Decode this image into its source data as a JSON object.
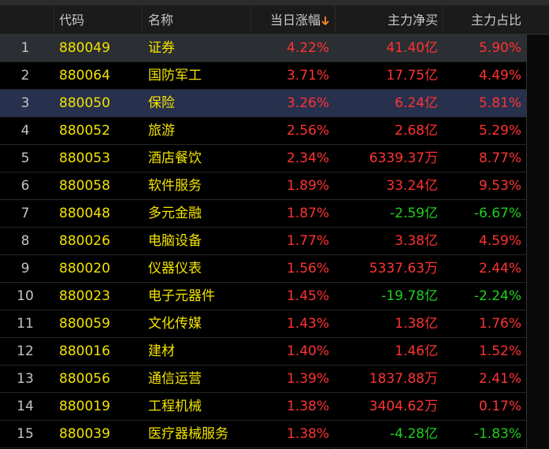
{
  "table": {
    "headers": [
      "代码",
      "名称",
      "当日涨幅",
      "主力净买",
      "主力占比"
    ],
    "rows": [
      [
        "1",
        "880049",
        "证券",
        "4.22%",
        "41.40亿",
        "5.90%"
      ],
      [
        "2",
        "880064",
        "国防军工",
        "3.71%",
        "17.75亿",
        "4.49%"
      ],
      [
        "3",
        "880050",
        "保险",
        "3.26%",
        "6.24亿",
        "5.81%"
      ],
      [
        "4",
        "880052",
        "旅游",
        "2.56%",
        "2.68亿",
        "5.29%"
      ],
      [
        "5",
        "880053",
        "酒店餐饮",
        "2.34%",
        "6339.37万",
        "8.77%"
      ],
      [
        "6",
        "880058",
        "软件服务",
        "1.89%",
        "33.24亿",
        "9.53%"
      ],
      [
        "7",
        "880048",
        "多元金融",
        "1.87%",
        "-2.59亿",
        "-6.67%"
      ],
      [
        "8",
        "880026",
        "电脑设备",
        "1.77%",
        "3.38亿",
        "4.59%"
      ],
      [
        "9",
        "880020",
        "仪器仪表",
        "1.56%",
        "5337.63万",
        "2.44%"
      ],
      [
        "10",
        "880023",
        "电子元器件",
        "1.45%",
        "-19.78亿",
        "-2.24%"
      ],
      [
        "11",
        "880059",
        "文化传媒",
        "1.43%",
        "1.38亿",
        "1.76%"
      ],
      [
        "12",
        "880016",
        "建材",
        "1.40%",
        "1.46亿",
        "1.52%"
      ],
      [
        "13",
        "880056",
        "通信运营",
        "1.39%",
        "1837.88万",
        "2.41%"
      ],
      [
        "14",
        "880019",
        "工程机械",
        "1.38%",
        "3404.62万",
        "0.17%"
      ],
      [
        "15",
        "880039",
        "医疗器械服务",
        "1.38%",
        "-4.28亿",
        "-1.83%"
      ]
    ]
  }
}
